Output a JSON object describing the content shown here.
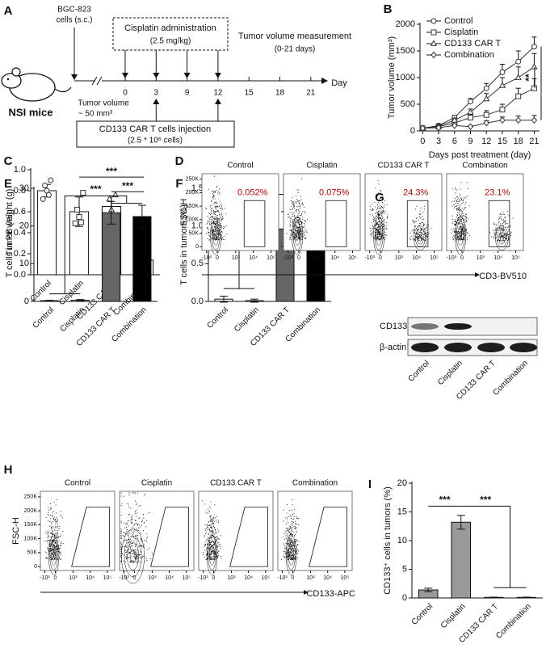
{
  "schematic": {
    "panel": "A",
    "mouse": "NSI mice",
    "cells_line1": "BGC-823",
    "cells_line2": "cells (s.c.)",
    "drug": "Cisplatin administration",
    "dose": "(2.5 mg/kg)",
    "measure": "Tumor volume measurement",
    "measure_range": "(0-21 days)",
    "days": [
      0,
      3,
      9,
      12,
      15,
      18,
      21
    ],
    "day_label": "Day",
    "start_volume": "Tumor volume",
    "start_volume_value": "~ 50 mm³",
    "injection": "CD133 CAR T cells injection",
    "injection_dose": "(2.5 * 10⁶ cells)"
  },
  "chart_data": [
    {
      "panel": "B",
      "type": "line",
      "y_label": "Tumor volume (mm³)",
      "x_label": "Days post treatment (day)",
      "x": [
        0,
        3,
        6,
        9,
        12,
        15,
        18,
        21
      ],
      "xlim": [
        -0.5,
        22
      ],
      "xticks": [
        0,
        3,
        6,
        9,
        12,
        15,
        18,
        21
      ],
      "ylim": [
        0,
        2000
      ],
      "yticks": [
        0,
        500,
        1000,
        1500,
        2000
      ],
      "legend": "upper left",
      "series": [
        {
          "name": "Control",
          "marker": "circle",
          "color": "#333333",
          "values": [
            50,
            100,
            250,
            550,
            800,
            1100,
            1300,
            1580
          ],
          "errors": [
            10,
            20,
            40,
            60,
            90,
            150,
            200,
            180
          ]
        },
        {
          "name": "Cisplatin",
          "marker": "square",
          "color": "#333333",
          "values": [
            50,
            80,
            150,
            250,
            300,
            400,
            650,
            800
          ],
          "errors": [
            10,
            20,
            30,
            60,
            80,
            100,
            150,
            180
          ]
        },
        {
          "name": "CD133 CAR T",
          "marker": "triangle",
          "color": "#333333",
          "values": [
            50,
            90,
            200,
            350,
            600,
            850,
            1000,
            1200
          ],
          "errors": [
            10,
            20,
            40,
            60,
            100,
            150,
            200,
            250
          ]
        },
        {
          "name": "Combination",
          "marker": "diamond",
          "color": "#333333",
          "values": [
            50,
            60,
            100,
            80,
            150,
            200,
            200,
            200
          ],
          "errors": [
            10,
            15,
            30,
            20,
            40,
            60,
            80,
            90
          ]
        }
      ],
      "annotations": [
        "**",
        "**"
      ]
    },
    {
      "panel": "C",
      "type": "bar",
      "y_label": "Tumor weight (g)",
      "categories": [
        "Control",
        "Cisplatin",
        "CD133 CAR T",
        "Combination"
      ],
      "values": [
        0.8,
        0.6,
        0.65,
        0.14
      ],
      "errors": [
        0.06,
        0.14,
        0.1,
        0.05
      ],
      "colors": [
        "#ffffff",
        "#ffffff",
        "#ffffff",
        "#ffffff"
      ],
      "points": [
        [
          0.9,
          0.85,
          0.8,
          0.76,
          0.72
        ],
        [
          0.78,
          0.62,
          0.55,
          0.5,
          0.49
        ],
        [
          0.76,
          0.72,
          0.62,
          0.55,
          0.47
        ],
        [
          0.2,
          0.15,
          0.13,
          0.11,
          0.09
        ]
      ],
      "point_markers": [
        "circle",
        "square",
        "triangle",
        "diamond"
      ],
      "ylim": [
        0,
        1.0
      ],
      "yticks": [
        {
          "value": 0,
          "label": "0.0"
        },
        0.2,
        0.4,
        0.6,
        0.8,
        {
          "value": 1,
          "label": "1.0"
        }
      ],
      "annotations": [
        "***",
        "***"
      ]
    },
    {
      "panel": "E",
      "type": "bar",
      "y_label": "T cells in PB (%)",
      "categories": [
        "Control",
        "Cisplatin",
        "CD133 CAR T",
        "Combination"
      ],
      "values": [
        0.2,
        0.3,
        23.5,
        22.5
      ],
      "errors": [
        0.1,
        0.2,
        3,
        3
      ],
      "colors": [
        "#ffffff",
        "#ffffff",
        "#666666",
        "#000000"
      ],
      "ylim": [
        0,
        30
      ],
      "yticks": [
        0,
        10,
        20,
        30
      ],
      "annotations": [
        "***"
      ]
    },
    {
      "panel": "F",
      "type": "bar",
      "y_label": "T cells in tumors (%)",
      "categories": [
        "Control",
        "Cisplatin",
        "CD133 CAR T",
        "Combination"
      ],
      "values": [
        0.03,
        0.01,
        0.96,
        1.08
      ],
      "errors": [
        0.04,
        0.02,
        0.23,
        0.1
      ],
      "colors": [
        "#ffffff",
        "#ffffff",
        "#666666",
        "#000000"
      ],
      "ylim": [
        0,
        1.5
      ],
      "yticks": [
        {
          "value": 0,
          "label": "0.0"
        },
        0.5,
        {
          "value": 1,
          "label": "1.0"
        },
        1.5
      ],
      "annotations": [
        "***"
      ]
    },
    {
      "panel": "I",
      "type": "bar",
      "y_label": "CD133⁺ cells in tumors (%)",
      "categories": [
        "Control",
        "Cisplatin",
        "CD133 CAR T",
        "Combination"
      ],
      "values": [
        1.4,
        13.2,
        0.1,
        0.1
      ],
      "errors": [
        0.3,
        1.2,
        0.05,
        0.05
      ],
      "colors": [
        "#999999",
        "#999999",
        "#999999",
        "#999999"
      ],
      "ylim": [
        0,
        20
      ],
      "yticks": [
        0,
        5,
        10,
        15,
        20
      ],
      "annotations": [
        "***",
        "***"
      ]
    }
  ],
  "flow": [
    {
      "panel": "D",
      "titles": [
        "Control",
        "Cisplatin",
        "CD133 CAR T",
        "Combination"
      ],
      "gates": [
        "0.052%",
        "0.075%",
        "24.3%",
        "23.1%"
      ],
      "y_axis": "FSC-H",
      "x_axis": "CD3-BV510",
      "yticks": [
        "250K",
        "200K",
        "150K",
        "100K",
        "50K",
        "0"
      ],
      "xticks": [
        "-10³",
        "0",
        "10³",
        "10⁴",
        "10⁵"
      ]
    },
    {
      "panel": "H",
      "titles": [
        "Control",
        "Cisplatin",
        "CD133 CAR T",
        "Combination"
      ],
      "y_axis": "FSC-H",
      "x_axis": "CD133-APC",
      "yticks": [
        "250K",
        "200K",
        "150K",
        "100K",
        "50K",
        "0"
      ],
      "xticks": [
        "-10³",
        "0",
        "10³",
        "10⁴",
        "10⁵"
      ]
    }
  ],
  "blot": {
    "panel": "G",
    "rows": [
      "CD133",
      "β-actin"
    ],
    "lanes": [
      "Control",
      "Cisplatin",
      "CD133 CAR T",
      "Combination"
    ]
  }
}
